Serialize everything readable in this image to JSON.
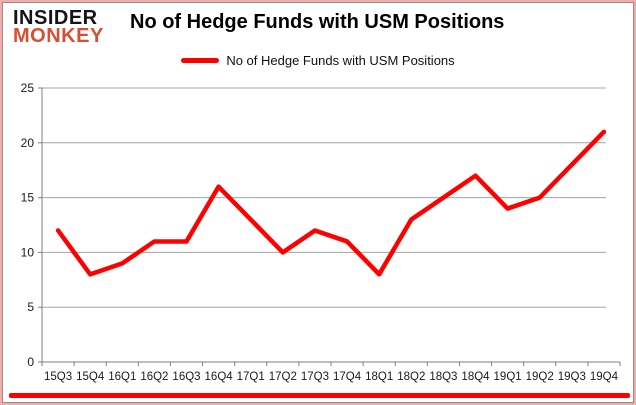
{
  "logo": {
    "top": "INSIDER",
    "bottom": "MONKEY",
    "accent_color": "#d94e33"
  },
  "header": {
    "title": "No of Hedge Funds with USM Positions"
  },
  "legend": {
    "label": "No of Hedge Funds with USM Positions"
  },
  "chart_data": {
    "type": "line",
    "title": "No of Hedge Funds with USM Positions",
    "categories": [
      "15Q3",
      "15Q4",
      "16Q1",
      "16Q2",
      "16Q3",
      "16Q4",
      "17Q1",
      "17Q2",
      "17Q3",
      "17Q4",
      "18Q1",
      "18Q2",
      "18Q3",
      "18Q4",
      "19Q1",
      "19Q2",
      "19Q3",
      "19Q4"
    ],
    "series": [
      {
        "name": "No of Hedge Funds with USM Positions",
        "color": "#ff0000",
        "values": [
          12,
          8,
          9,
          11,
          11,
          16,
          13,
          10,
          12,
          11,
          8,
          13,
          15,
          17,
          14,
          15,
          18,
          21
        ]
      }
    ],
    "xlabel": "",
    "ylabel": "",
    "ylim": [
      0,
      25
    ],
    "yticks": [
      0,
      5,
      10,
      15,
      20,
      25
    ],
    "grid": true,
    "legend_position": "top-center"
  },
  "colors": {
    "line": "#ff0000",
    "grid": "#a3a3a3",
    "axis": "#7f7f7f",
    "tick_text": "#1a1a1a",
    "accent_bar": "#ff0000",
    "frame_border": "#f3aca6"
  }
}
